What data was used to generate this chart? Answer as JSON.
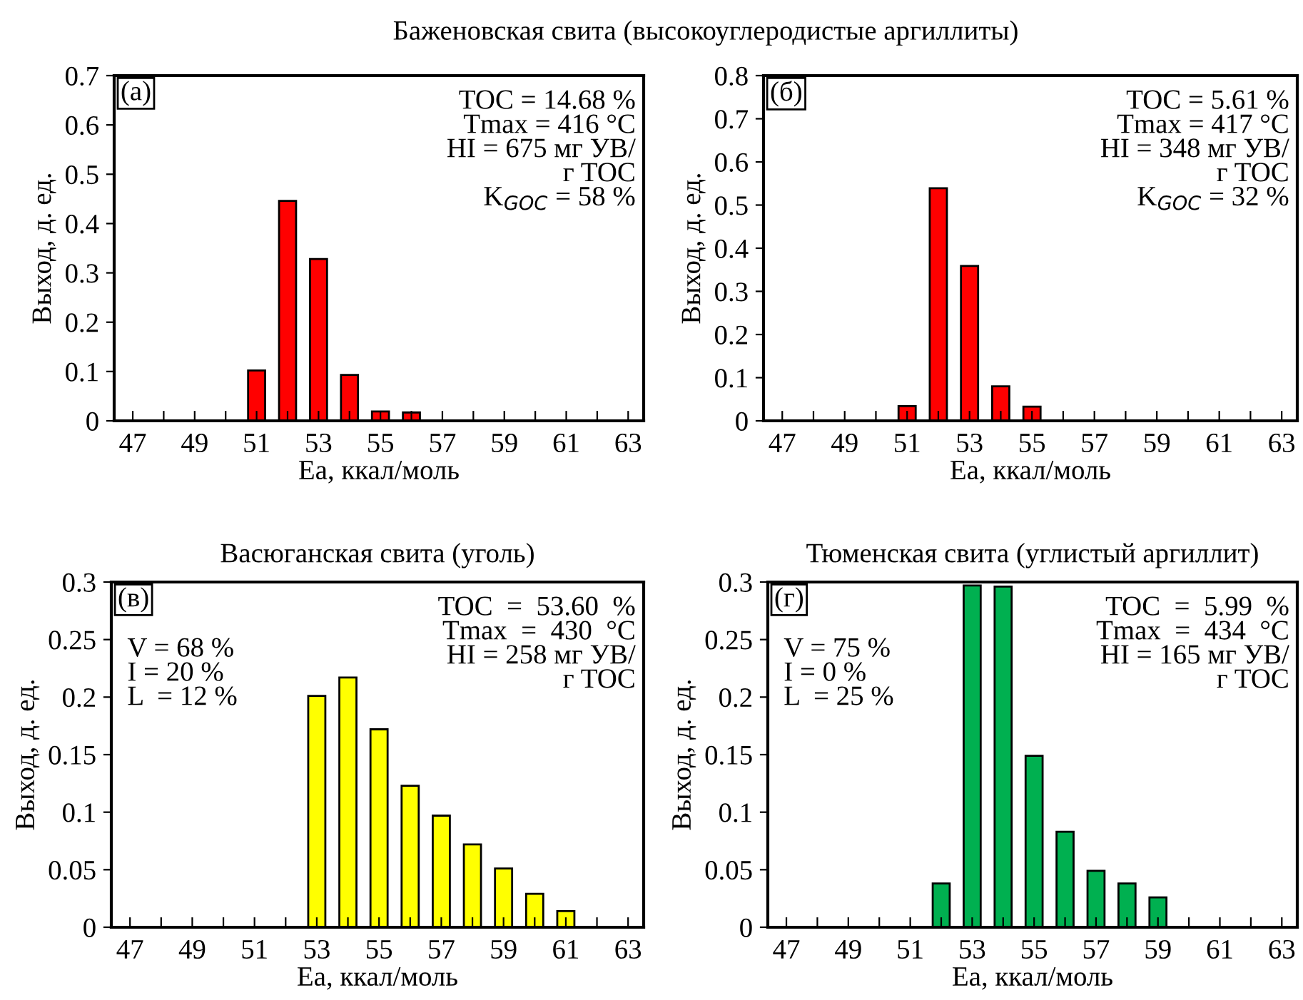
{
  "chart_data": [
    {
      "type": "bar",
      "title": "Баженовская свита (высокоуглеродистые аргиллиты)",
      "xlabel": "Ea, ккал/моль",
      "ylabel": "Выход, д. ед.",
      "color": "#ff0000",
      "x": [
        51,
        52,
        53,
        54,
        55,
        56
      ],
      "values": [
        0.102,
        0.446,
        0.328,
        0.093,
        0.019,
        0.017
      ],
      "xlim": [
        46.4,
        63.5
      ],
      "xticks": [
        47,
        {
          "value": 48,
          "label": null
        },
        49,
        {
          "value": 50,
          "label": null
        },
        51,
        {
          "value": 52,
          "label": null
        },
        53,
        {
          "value": 54,
          "label": null
        },
        55,
        {
          "value": 56,
          "label": null
        },
        57,
        {
          "value": 58,
          "label": null
        },
        59,
        {
          "value": 60,
          "label": null
        },
        61,
        {
          "value": 62,
          "label": null
        },
        63
      ],
      "ylim": [
        0,
        0.7
      ],
      "yticks": [
        0,
        0.1,
        0.2,
        0.3,
        0.4,
        0.5,
        0.6,
        0.7
      ],
      "annotations": [
        "(а)",
        "TOC = 14.68 %\nTmax = 416 °C\nHI = 675 мг УВ/\n         г TOC\nK$_{GOC}$ = 58 %"
      ]
    },
    {
      "type": "bar",
      "xlabel": "Ea, ккал/моль",
      "ylabel": "Выход, д. ед.",
      "color": "#ff0000",
      "x": [
        51,
        52,
        53,
        54,
        55
      ],
      "values": [
        0.034,
        0.539,
        0.359,
        0.08,
        0.033
      ],
      "xlim": [
        46.4,
        63.5
      ],
      "xticks": [
        47,
        {
          "value": 48,
          "label": null
        },
        49,
        {
          "value": 50,
          "label": null
        },
        51,
        {
          "value": 52,
          "label": null
        },
        53,
        {
          "value": 54,
          "label": null
        },
        55,
        {
          "value": 56,
          "label": null
        },
        57,
        {
          "value": 58,
          "label": null
        },
        59,
        {
          "value": 60,
          "label": null
        },
        61,
        {
          "value": 62,
          "label": null
        },
        63
      ],
      "ylim": [
        0,
        0.8
      ],
      "yticks": [
        0,
        0.1,
        0.2,
        0.3,
        0.4,
        0.5,
        0.6,
        0.7,
        0.8
      ],
      "annotations": [
        "(б)",
        "TOC = 5.61 %\nTmax = 417 °C\nHI = 348 мг УВ/\n         г TOC\nK$_{GOC}$ = 32 %"
      ]
    },
    {
      "type": "bar",
      "title": "Васюганская свита (уголь)",
      "xlabel": "Ea, ккал/моль",
      "ylabel": "Выход, д. ед.",
      "color": "#ffff00",
      "x": [
        53,
        54,
        55,
        56,
        57,
        58,
        59,
        60,
        61
      ],
      "values": [
        0.201,
        0.217,
        0.172,
        0.123,
        0.097,
        0.072,
        0.051,
        0.029,
        0.014
      ],
      "xlim": [
        46.4,
        63.5
      ],
      "xticks": [
        47,
        {
          "value": 48,
          "label": null
        },
        49,
        {
          "value": 50,
          "label": null
        },
        51,
        {
          "value": 52,
          "label": null
        },
        53,
        {
          "value": 54,
          "label": null
        },
        55,
        {
          "value": 56,
          "label": null
        },
        57,
        {
          "value": 58,
          "label": null
        },
        59,
        {
          "value": 60,
          "label": null
        },
        61,
        {
          "value": 62,
          "label": null
        },
        63
      ],
      "ylim": [
        0,
        0.3
      ],
      "yticks": [
        0,
        0.05,
        0.1,
        0.15,
        0.2,
        0.25,
        0.3
      ],
      "annotations": [
        "(в)",
        "TOC  =  53.60  %\nTmax  =  430  °C\nHI = 258 мг УВ/\n           г TOC",
        "V = 68 %\nI = 20 %\nL  = 12 %"
      ]
    },
    {
      "type": "bar",
      "title": "Тюменская свита (углистый аргиллит)",
      "xlabel": "Ea, ккал/моль",
      "ylabel": "Выход, д. ед.",
      "color": "#00b050",
      "x": [
        52,
        53,
        54,
        55,
        56,
        57,
        58,
        59
      ],
      "values": [
        0.038,
        0.297,
        0.296,
        0.149,
        0.083,
        0.049,
        0.038,
        0.026
      ],
      "xlim": [
        46.4,
        63.5
      ],
      "xticks": [
        47,
        {
          "value": 48,
          "label": null
        },
        49,
        {
          "value": 50,
          "label": null
        },
        51,
        {
          "value": 52,
          "label": null
        },
        53,
        {
          "value": 54,
          "label": null
        },
        55,
        {
          "value": 56,
          "label": null
        },
        57,
        {
          "value": 58,
          "label": null
        },
        59,
        {
          "value": 60,
          "label": null
        },
        61,
        {
          "value": 62,
          "label": null
        },
        63
      ],
      "ylim": [
        0,
        0.3
      ],
      "yticks": [
        0,
        0.05,
        0.1,
        0.15,
        0.2,
        0.25,
        0.3
      ],
      "annotations": [
        "(г)",
        "TOC  =  5.99  %\nTmax  =  434  °C\nHI = 165 мг УВ/\n          г TOC",
        "V = 75 %\nI = 0 %\nL  = 25 %"
      ]
    }
  ]
}
